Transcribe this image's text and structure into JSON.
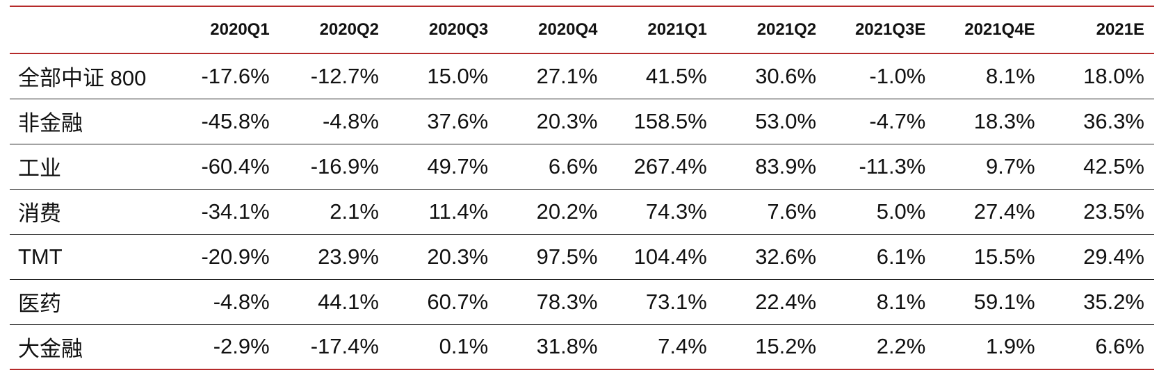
{
  "chart_data": {
    "type": "table",
    "columns": [
      "",
      "2020Q1",
      "2020Q2",
      "2020Q3",
      "2020Q4",
      "2021Q1",
      "2021Q2",
      "2021Q3E",
      "2021Q4E",
      "2021E"
    ],
    "rows": [
      {
        "label": "全部中证 800",
        "values": [
          "-17.6%",
          "-12.7%",
          "15.0%",
          "27.1%",
          "41.5%",
          "30.6%",
          "-1.0%",
          "8.1%",
          "18.0%"
        ]
      },
      {
        "label": "非金融",
        "values": [
          "-45.8%",
          "-4.8%",
          "37.6%",
          "20.3%",
          "158.5%",
          "53.0%",
          "-4.7%",
          "18.3%",
          "36.3%"
        ]
      },
      {
        "label": "工业",
        "values": [
          "-60.4%",
          "-16.9%",
          "49.7%",
          "6.6%",
          "267.4%",
          "83.9%",
          "-11.3%",
          "9.7%",
          "42.5%"
        ]
      },
      {
        "label": "消费",
        "values": [
          "-34.1%",
          "2.1%",
          "11.4%",
          "20.2%",
          "74.3%",
          "7.6%",
          "5.0%",
          "27.4%",
          "23.5%"
        ]
      },
      {
        "label": "TMT",
        "values": [
          "-20.9%",
          "23.9%",
          "20.3%",
          "97.5%",
          "104.4%",
          "32.6%",
          "6.1%",
          "15.5%",
          "29.4%"
        ]
      },
      {
        "label": "医药",
        "values": [
          "-4.8%",
          "44.1%",
          "60.7%",
          "78.3%",
          "73.1%",
          "22.4%",
          "8.1%",
          "59.1%",
          "35.2%"
        ]
      },
      {
        "label": "大金融",
        "values": [
          "-2.9%",
          "-17.4%",
          "0.1%",
          "31.8%",
          "7.4%",
          "15.2%",
          "2.2%",
          "1.9%",
          "6.6%"
        ]
      }
    ]
  }
}
